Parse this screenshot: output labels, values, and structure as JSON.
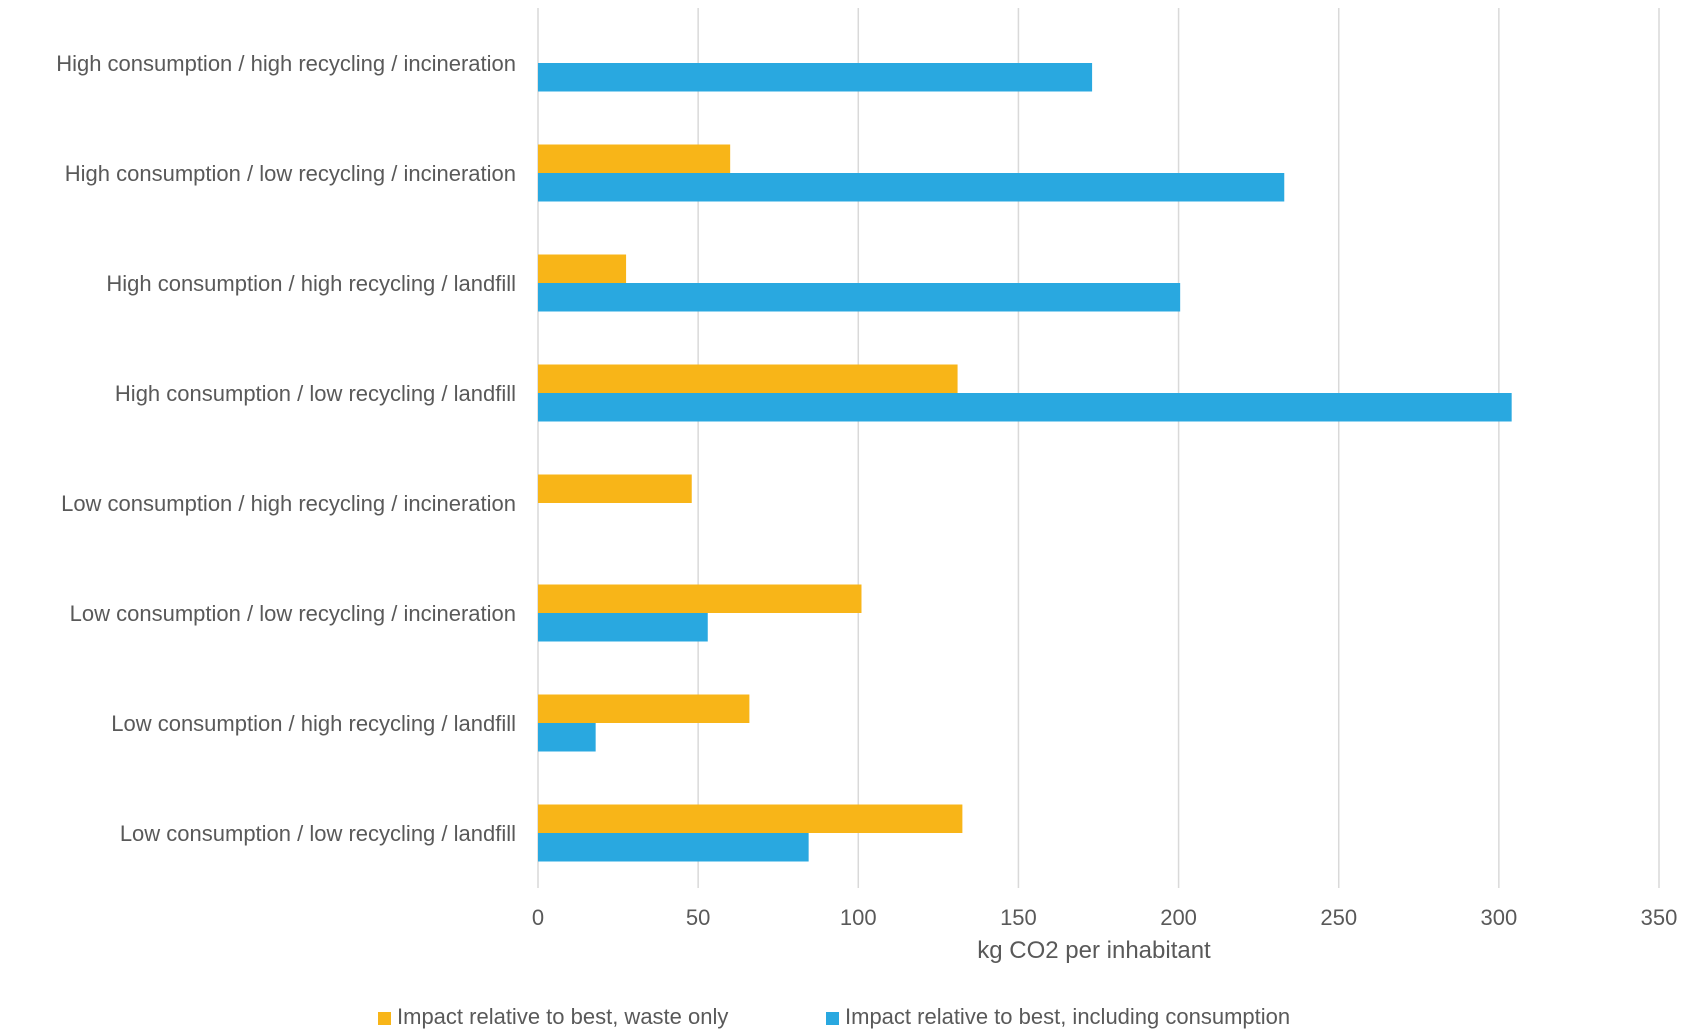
{
  "chart_data": {
    "type": "bar",
    "orientation": "horizontal",
    "categories": [
      "High consumption / high recycling / incineration",
      "High consumption / low recycling / incineration",
      "High consumption / high recycling / landfill",
      "High consumption / low recycling / landfill",
      "Low consumption / high recycling / incineration",
      "Low consumption / low recycling / incineration",
      "Low consumption / high recycling / landfill",
      "Low consumption / low recycling / landfill"
    ],
    "series": [
      {
        "name": "Impact relative to best, waste only",
        "color": "#F8B518",
        "values": [
          0,
          60,
          27.5,
          131,
          48,
          101,
          66,
          132.5
        ]
      },
      {
        "name": "Impact relative to best, including consumption",
        "color": "#29A8E0",
        "values": [
          173,
          233,
          200.5,
          304,
          0,
          53,
          18,
          84.5
        ]
      }
    ],
    "xlabel": "kg CO2 per inhabitant",
    "xlim": [
      0,
      350
    ],
    "xticks": [
      "0",
      "50",
      "100",
      "150",
      "200",
      "250",
      "300",
      "350"
    ],
    "grid": true,
    "legend_position": "bottom",
    "colors": {
      "gridline": "#D9D9D9",
      "axis_text": "#595959"
    }
  }
}
